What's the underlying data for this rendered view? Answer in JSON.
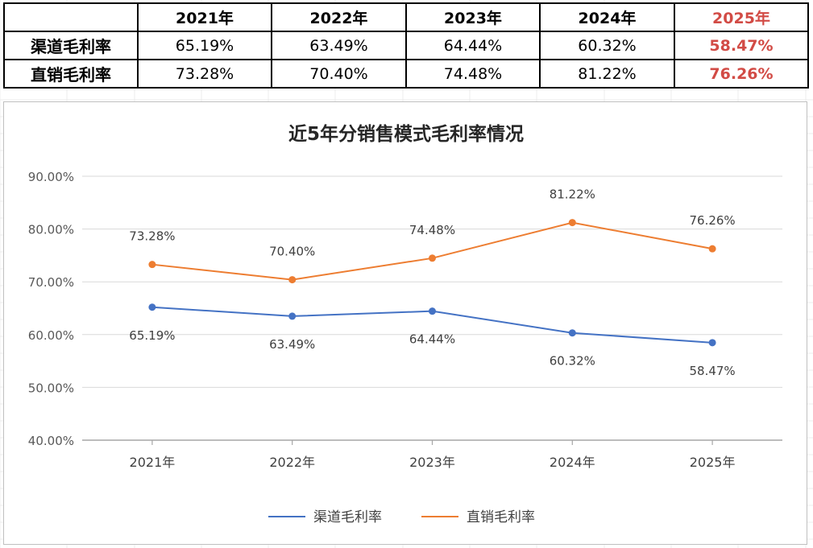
{
  "table": {
    "years": [
      "2021年",
      "2022年",
      "2023年",
      "2024年",
      "2025年"
    ],
    "rows": [
      {
        "label": "渠道毛利率",
        "values": [
          "65.19%",
          "63.49%",
          "64.44%",
          "60.32%",
          "58.47%"
        ]
      },
      {
        "label": "直销毛利率",
        "values": [
          "73.28%",
          "70.40%",
          "74.48%",
          "81.22%",
          "76.26%"
        ]
      }
    ],
    "highlight_color": "#d24b45"
  },
  "chart_data": {
    "type": "line",
    "title": "近5年分销售模式毛利率情况",
    "categories": [
      "2021年",
      "2022年",
      "2023年",
      "2024年",
      "2025年"
    ],
    "ylim": [
      40,
      90
    ],
    "yticks": [
      40,
      50,
      60,
      70,
      80,
      90
    ],
    "ytick_labels": [
      "40.00%",
      "50.00%",
      "60.00%",
      "70.00%",
      "80.00%",
      "90.00%"
    ],
    "grid": true,
    "legend_position": "bottom",
    "series": [
      {
        "name": "渠道毛利率",
        "color": "#4472c4",
        "values": [
          65.19,
          63.49,
          64.44,
          60.32,
          58.47
        ],
        "labels": [
          "65.19%",
          "63.49%",
          "64.44%",
          "60.32%",
          "58.47%"
        ],
        "label_position": "below"
      },
      {
        "name": "直销毛利率",
        "color": "#ed7d31",
        "values": [
          73.28,
          70.4,
          74.48,
          81.22,
          76.26
        ],
        "labels": [
          "73.28%",
          "70.40%",
          "74.48%",
          "81.22%",
          "76.26%"
        ],
        "label_position": "above"
      }
    ]
  }
}
